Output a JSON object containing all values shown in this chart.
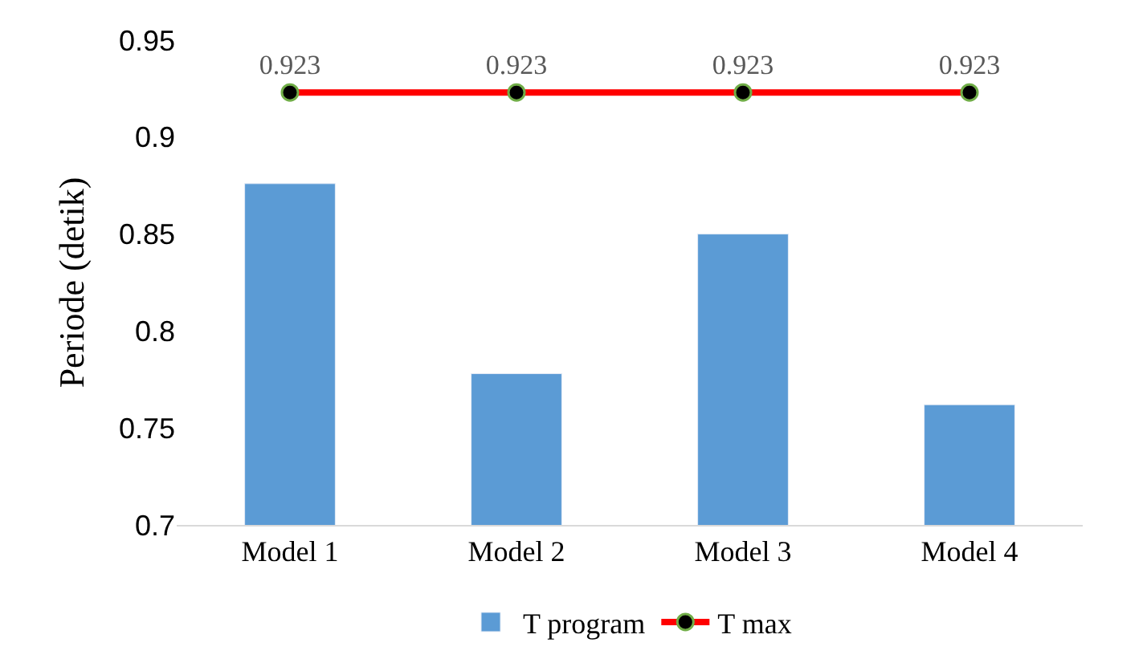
{
  "chart_data": {
    "type": "bar",
    "ylabel": "Periode (detik)",
    "categories": [
      "Model 1",
      "Model 2",
      "Model 3",
      "Model 4"
    ],
    "series": [
      {
        "name": "T program",
        "color": "#5b9bd5",
        "values": [
          0.876,
          0.778,
          0.85,
          0.762
        ]
      },
      {
        "name": "T max",
        "type": "line",
        "color": "#ff0000",
        "marker": "circle",
        "values": [
          0.923,
          0.923,
          0.923,
          0.923
        ],
        "value_labels": [
          "0.923",
          "0.923",
          "0.923",
          "0.923"
        ]
      }
    ],
    "ylim": [
      0.7,
      0.95
    ],
    "yticks": [
      0.7,
      0.75,
      0.8,
      0.85,
      0.9,
      0.95
    ],
    "grid": false,
    "legend": "bottom"
  }
}
